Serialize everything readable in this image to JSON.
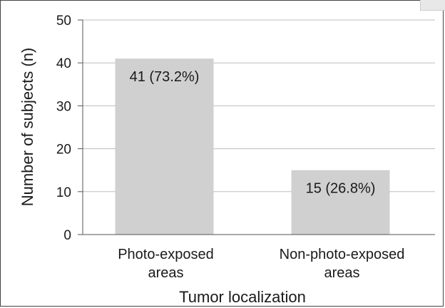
{
  "chart_data": {
    "type": "bar",
    "categories": [
      [
        "Photo-exposed",
        "areas"
      ],
      [
        "Non-photo-exposed",
        "areas"
      ]
    ],
    "values": [
      41,
      15
    ],
    "data_labels": [
      "41 (73.2%)",
      "15 (26.8%)"
    ],
    "xlabel": "Tumor localization",
    "ylabel": "Number of subjects (n)",
    "ylim": [
      0,
      50
    ],
    "yticks": [
      0,
      10,
      20,
      30,
      40,
      50
    ],
    "grid": true,
    "colors": {
      "bar": "#d0d0d0",
      "grid": "#bdbdbd",
      "axis": "#555555"
    }
  }
}
